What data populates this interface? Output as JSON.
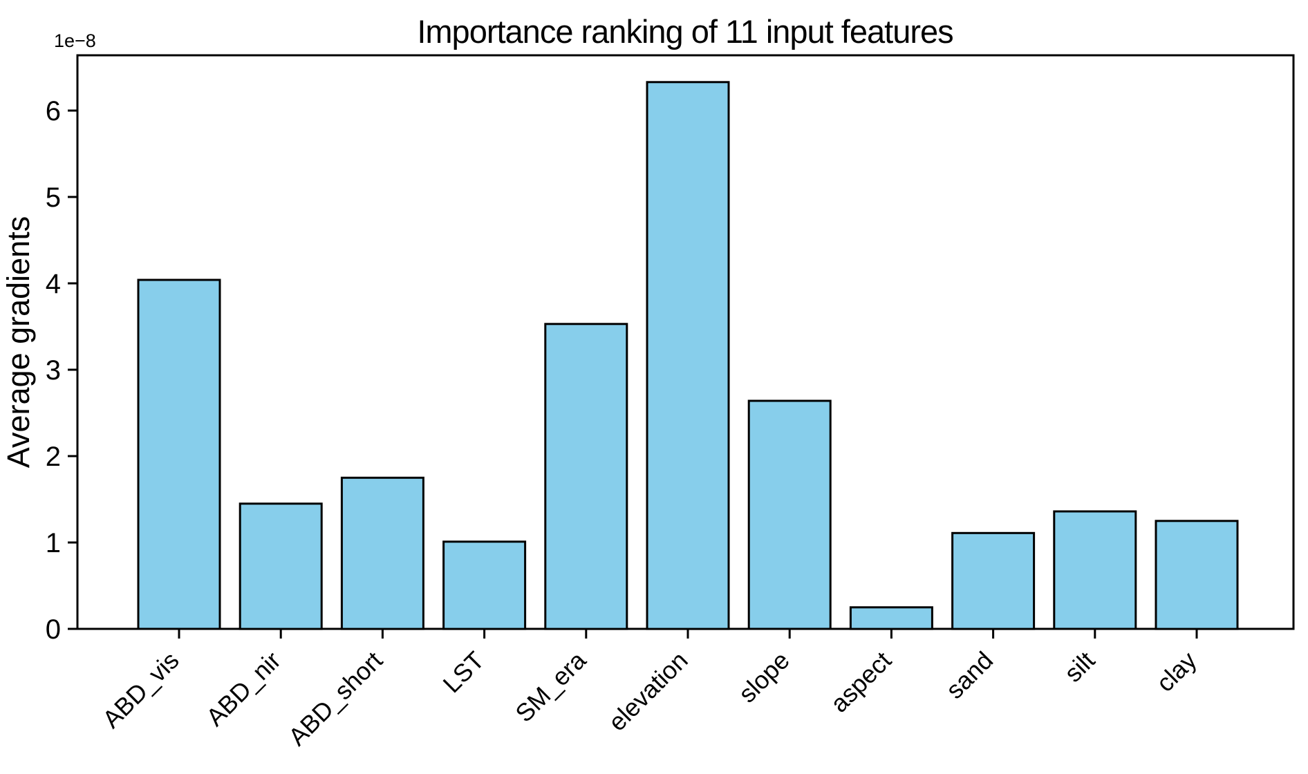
{
  "figure": {
    "background": "#ffffff"
  },
  "chart_data": {
    "type": "bar",
    "title": "Importance ranking of 11 input features",
    "xlabel": "",
    "ylabel": "Average gradients",
    "offset_text": "1e−8",
    "value_scale_note": "values are in units of 1e-8 (axis offset shown top-left)",
    "categories": [
      "ABD_vis",
      "ABD_nir",
      "ABD_short",
      "LST",
      "SM_era",
      "elevation",
      "slope",
      "aspect",
      "sand",
      "silt",
      "clay"
    ],
    "values": [
      4.04,
      1.45,
      1.75,
      1.01,
      3.53,
      6.33,
      2.64,
      0.25,
      1.11,
      1.36,
      1.25
    ],
    "yticks": [
      0,
      1,
      2,
      3,
      4,
      5,
      6
    ],
    "ylim": [
      0,
      6.64
    ],
    "x_tick_rotation": 45,
    "grid": false,
    "legend": null,
    "bar_color": "#87CEEB",
    "bar_edge_color": "#000000",
    "axis_color": "#000000"
  }
}
